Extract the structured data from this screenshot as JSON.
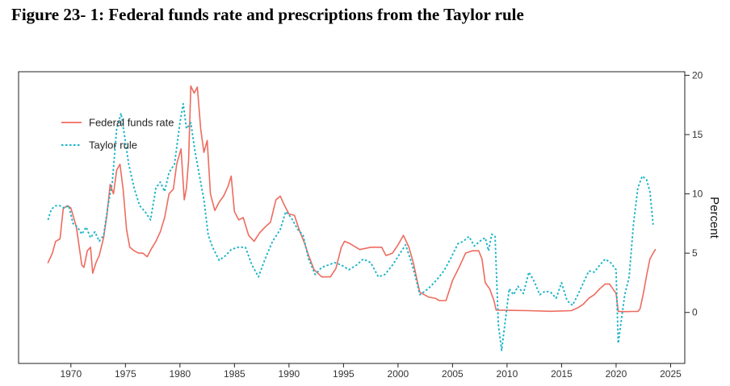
{
  "figure": {
    "title": "Figure 23- 1: Federal funds rate and prescriptions from the Taylor rule"
  },
  "chart_data": {
    "type": "line",
    "title": "Figure 23- 1: Federal funds rate and prescriptions from the Taylor rule",
    "xlabel": "",
    "ylabel": "Percent",
    "xlim": [
      1965.2,
      2026.3
    ],
    "ylim": [
      -4.3,
      20.3
    ],
    "x_ticks": [
      1970,
      1975,
      1980,
      1985,
      1990,
      1995,
      2000,
      2005,
      2010,
      2015,
      2020,
      2025
    ],
    "y_ticks": [
      0,
      5,
      10,
      15,
      20
    ],
    "y_axis_side": "right",
    "grid": false,
    "legend": {
      "placement": "top-left"
    },
    "series": [
      {
        "name": "Federal funds rate",
        "color": "#ee6b5e",
        "style": "solid",
        "x": [
          1967.9,
          1968.3,
          1968.6,
          1969.0,
          1969.3,
          1969.7,
          1970.0,
          1970.5,
          1971.0,
          1971.2,
          1971.5,
          1971.8,
          1972.0,
          1972.3,
          1972.6,
          1973.0,
          1973.3,
          1973.6,
          1973.9,
          1974.2,
          1974.5,
          1974.8,
          1975.1,
          1975.4,
          1975.8,
          1976.2,
          1976.6,
          1977.0,
          1977.4,
          1977.8,
          1978.2,
          1978.6,
          1979.0,
          1979.4,
          1979.7,
          1980.1,
          1980.4,
          1980.6,
          1980.8,
          1981.0,
          1981.3,
          1981.6,
          1981.9,
          1982.2,
          1982.5,
          1982.8,
          1983.2,
          1983.6,
          1984.0,
          1984.4,
          1984.7,
          1985.0,
          1985.4,
          1985.8,
          1986.3,
          1986.8,
          1987.3,
          1987.8,
          1988.3,
          1988.8,
          1989.2,
          1989.6,
          1990.0,
          1990.5,
          1991.0,
          1991.4,
          1991.8,
          1992.3,
          1993.0,
          1993.8,
          1994.3,
          1994.8,
          1995.1,
          1995.6,
          1996.5,
          1997.5,
          1998.5,
          1998.9,
          1999.5,
          2000.0,
          2000.5,
          2001.0,
          2001.4,
          2001.8,
          2002.0,
          2002.8,
          2003.4,
          2003.8,
          2004.4,
          2005.0,
          2005.6,
          2006.2,
          2006.8,
          2007.4,
          2007.7,
          2008.0,
          2008.4,
          2008.8,
          2009.0,
          2010.0,
          2012.0,
          2014.0,
          2015.9,
          2016.5,
          2017.0,
          2017.5,
          2018.0,
          2018.5,
          2019.0,
          2019.4,
          2019.7,
          2020.0,
          2020.2,
          2020.5,
          2021.0,
          2021.5,
          2022.0,
          2022.2,
          2022.5,
          2022.8,
          2023.1,
          2023.4,
          2023.6
        ],
        "y": [
          4.2,
          5.0,
          6.0,
          6.2,
          8.8,
          9.0,
          8.8,
          7.2,
          4.0,
          3.8,
          5.2,
          5.5,
          3.3,
          4.2,
          4.8,
          6.3,
          8.2,
          10.8,
          10.0,
          12.0,
          12.5,
          10.3,
          7.0,
          5.5,
          5.2,
          5.0,
          5.0,
          4.7,
          5.4,
          6.0,
          6.8,
          8.0,
          10.0,
          10.4,
          12.5,
          13.8,
          9.5,
          10.5,
          12.9,
          19.1,
          18.5,
          19.0,
          15.5,
          13.5,
          14.5,
          10.0,
          8.6,
          9.3,
          9.8,
          10.6,
          11.5,
          8.5,
          7.8,
          8.0,
          6.5,
          6.0,
          6.7,
          7.2,
          7.6,
          9.5,
          9.8,
          9.0,
          8.3,
          8.2,
          6.8,
          5.9,
          4.8,
          3.6,
          3.0,
          3.0,
          3.7,
          5.5,
          6.0,
          5.8,
          5.3,
          5.5,
          5.5,
          4.8,
          5.0,
          5.7,
          6.5,
          5.5,
          4.2,
          2.5,
          1.7,
          1.3,
          1.2,
          1.0,
          1.0,
          2.7,
          3.8,
          5.0,
          5.2,
          5.2,
          4.5,
          2.5,
          2.0,
          1.0,
          0.2,
          0.18,
          0.15,
          0.1,
          0.15,
          0.4,
          0.7,
          1.2,
          1.5,
          2.0,
          2.4,
          2.4,
          2.0,
          1.6,
          0.1,
          0.07,
          0.07,
          0.08,
          0.08,
          0.3,
          1.6,
          3.1,
          4.5,
          5.0,
          5.3
        ]
      },
      {
        "name": "Taylor rule",
        "color": "#1ab4c8",
        "style": "dotted",
        "x": [
          1967.9,
          1968.2,
          1968.6,
          1969.0,
          1969.4,
          1969.8,
          1970.2,
          1970.6,
          1971.0,
          1971.4,
          1971.8,
          1972.2,
          1972.6,
          1973.0,
          1973.4,
          1973.8,
          1974.2,
          1974.6,
          1974.9,
          1975.3,
          1975.8,
          1976.3,
          1976.8,
          1977.3,
          1977.8,
          1978.2,
          1978.6,
          1979.0,
          1979.5,
          1980.0,
          1980.3,
          1980.6,
          1981.0,
          1981.4,
          1981.8,
          1982.2,
          1982.6,
          1983.0,
          1983.6,
          1984.2,
          1984.7,
          1985.3,
          1986.0,
          1986.6,
          1987.2,
          1987.8,
          1988.5,
          1989.2,
          1989.7,
          1990.2,
          1990.8,
          1991.3,
          1991.8,
          1992.4,
          1993.0,
          1993.6,
          1994.2,
          1994.8,
          1995.5,
          1996.2,
          1996.8,
          1997.5,
          1998.2,
          1998.8,
          1999.5,
          2000.2,
          2000.7,
          2001.2,
          2001.6,
          2002.0,
          2002.5,
          2003.0,
          2003.6,
          2004.2,
          2004.8,
          2005.5,
          2006.0,
          2006.5,
          2007.0,
          2007.5,
          2008.0,
          2008.3,
          2008.6,
          2008.9,
          2009.2,
          2009.5,
          2009.8,
          2010.2,
          2010.6,
          2011.0,
          2011.5,
          2012.0,
          2012.5,
          2013.0,
          2013.5,
          2014.0,
          2014.5,
          2015.0,
          2015.5,
          2016.0,
          2016.5,
          2017.0,
          2017.5,
          2018.0,
          2018.5,
          2019.0,
          2019.5,
          2020.0,
          2020.2,
          2020.5,
          2020.8,
          2021.2,
          2021.6,
          2022.0,
          2022.4,
          2022.8,
          2023.1,
          2023.4
        ],
        "y": [
          7.8,
          8.7,
          9.0,
          9.0,
          8.8,
          9.0,
          7.5,
          7.2,
          6.6,
          7.2,
          6.3,
          6.8,
          6.0,
          6.5,
          9.0,
          11.0,
          15.5,
          16.8,
          15.0,
          12.5,
          10.5,
          9.0,
          8.5,
          7.8,
          10.5,
          11.0,
          10.2,
          11.8,
          12.5,
          16.0,
          17.6,
          15.5,
          16.0,
          13.5,
          11.5,
          9.5,
          6.5,
          5.5,
          4.4,
          4.8,
          5.3,
          5.5,
          5.5,
          4.0,
          3.0,
          4.5,
          6.0,
          7.0,
          8.5,
          8.0,
          7.0,
          6.5,
          4.5,
          3.2,
          3.8,
          4.0,
          4.2,
          4.0,
          3.6,
          4.0,
          4.5,
          4.2,
          3.0,
          3.2,
          4.0,
          5.0,
          5.7,
          4.3,
          3.0,
          1.5,
          1.8,
          2.2,
          2.8,
          3.5,
          4.5,
          5.8,
          6.0,
          6.4,
          5.6,
          6.0,
          6.3,
          5.2,
          6.6,
          6.4,
          -1.0,
          -3.2,
          -1.0,
          2.0,
          1.5,
          2.2,
          1.6,
          3.4,
          2.6,
          1.5,
          1.8,
          1.7,
          1.2,
          2.5,
          1.0,
          0.6,
          1.5,
          2.5,
          3.5,
          3.4,
          4.0,
          4.5,
          4.2,
          3.6,
          -2.6,
          -0.5,
          1.5,
          3.0,
          7.5,
          10.5,
          11.5,
          11.2,
          10.2,
          7.4
        ]
      }
    ]
  }
}
